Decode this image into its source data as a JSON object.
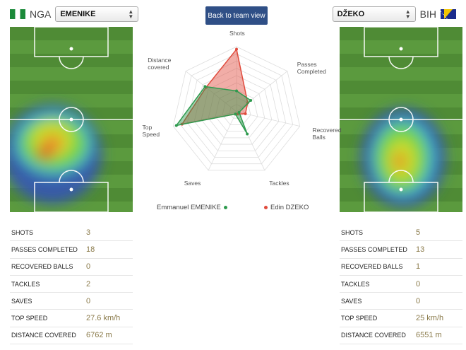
{
  "left_team": {
    "code": "NGA",
    "flag": "nigeria-flag",
    "player_selected": "EMENIKE",
    "stats": [
      {
        "label": "SHOTS",
        "value": "3"
      },
      {
        "label": "PASSES COMPLETED",
        "value": "18"
      },
      {
        "label": "RECOVERED BALLS",
        "value": "0"
      },
      {
        "label": "TACKLES",
        "value": "2"
      },
      {
        "label": "SAVES",
        "value": "0"
      },
      {
        "label": "TOP SPEED",
        "value": "27.6 km/h"
      },
      {
        "label": "DISTANCE COVERED",
        "value": "6762 m"
      }
    ]
  },
  "right_team": {
    "code": "BIH",
    "flag": "bosnia-flag",
    "player_selected": "DŽEKO",
    "stats": [
      {
        "label": "SHOTS",
        "value": "5"
      },
      {
        "label": "PASSES COMPLETED",
        "value": "13"
      },
      {
        "label": "RECOVERED BALLS",
        "value": "1"
      },
      {
        "label": "TACKLES",
        "value": "0"
      },
      {
        "label": "SAVES",
        "value": "0"
      },
      {
        "label": "TOP SPEED",
        "value": "25 km/h"
      },
      {
        "label": "DISTANCE COVERED",
        "value": "6551 m"
      }
    ]
  },
  "back_button": "Back to team view",
  "radar": {
    "axes": [
      "Shots",
      "Passes\nCompleted",
      "Recovered\nBalls",
      "Tackles",
      "Saves",
      "Top\nSpeed",
      "Distance\ncovered"
    ],
    "series": [
      {
        "name": "Emmanuel EMENIKE",
        "color": "#2e9a4e",
        "values": [
          0.32,
          0.28,
          0,
          0.38,
          0,
          0.95,
          0.62
        ]
      },
      {
        "name": "Edin DZEKO",
        "color": "#e04a3c",
        "values": [
          0.96,
          0.22,
          0.14,
          0,
          0,
          0.86,
          0.6
        ]
      }
    ]
  },
  "colors": {
    "button_bg": "#2f4f86",
    "pitch_green": "#4f8b35",
    "stat_value": "#8a7a4a"
  }
}
